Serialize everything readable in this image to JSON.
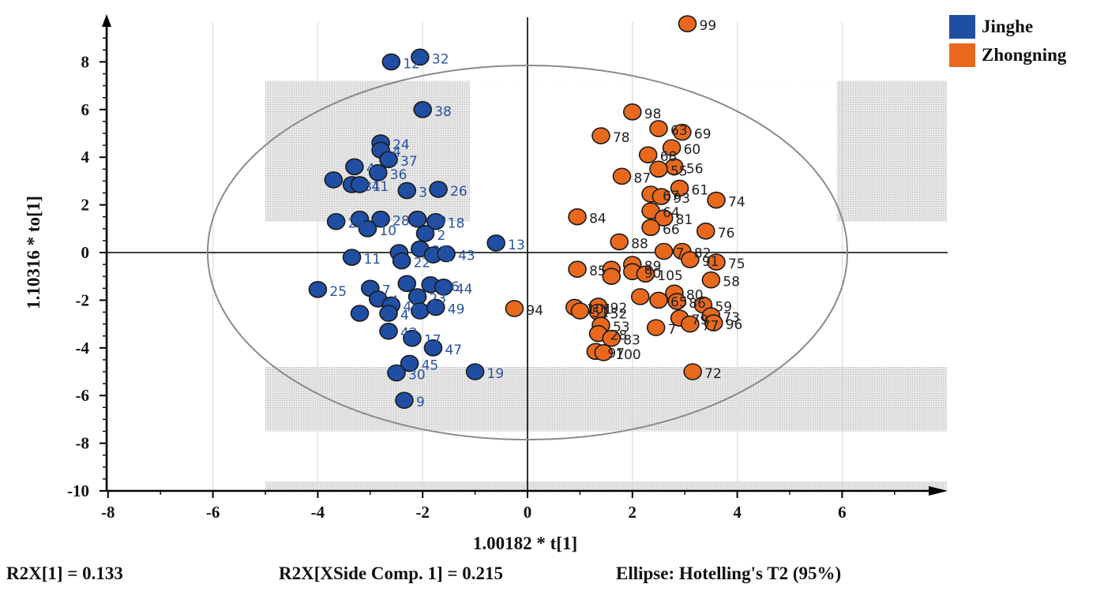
{
  "chart_data": {
    "type": "scatter",
    "xlabel": "1.00182 * t[1]",
    "ylabel": "1.10316 * to[1]",
    "xlim": [
      -8,
      8
    ],
    "ylim": [
      -10,
      10
    ],
    "x_ticks": [
      -8,
      -6,
      -4,
      -2,
      0,
      2,
      4,
      6
    ],
    "y_ticks": [
      -10,
      -8,
      -6,
      -4,
      -2,
      0,
      2,
      4,
      6,
      8
    ],
    "ellipse": {
      "center": [
        0,
        0
      ],
      "semi_axis_x": 6.1,
      "semi_axis_y": 7.85
    },
    "legend_position": "top-right",
    "series": [
      {
        "name": "Jinghe",
        "color": "#1f4ea3",
        "label_color": "#2a52a0",
        "points": [
          {
            "x": -2.6,
            "y": 8.0,
            "label": "12"
          },
          {
            "x": -2.05,
            "y": 8.2,
            "label": "32"
          },
          {
            "x": -2.0,
            "y": 6.0,
            "label": "38"
          },
          {
            "x": -2.8,
            "y": 4.6,
            "label": "24"
          },
          {
            "x": -2.8,
            "y": 4.3,
            "label": "4"
          },
          {
            "x": -2.65,
            "y": 3.9,
            "label": "37"
          },
          {
            "x": -3.3,
            "y": 3.6,
            "label": "4"
          },
          {
            "x": -2.85,
            "y": 3.35,
            "label": "36"
          },
          {
            "x": -3.7,
            "y": 3.05,
            "label": ""
          },
          {
            "x": -3.35,
            "y": 2.85,
            "label": "31"
          },
          {
            "x": -3.2,
            "y": 2.85,
            "label": "41"
          },
          {
            "x": -2.3,
            "y": 2.6,
            "label": "3"
          },
          {
            "x": -1.7,
            "y": 2.65,
            "label": "26"
          },
          {
            "x": -3.65,
            "y": 1.3,
            "label": "22"
          },
          {
            "x": -3.2,
            "y": 1.4,
            "label": ""
          },
          {
            "x": -2.8,
            "y": 1.4,
            "label": "28"
          },
          {
            "x": -3.05,
            "y": 1.0,
            "label": "10"
          },
          {
            "x": -2.1,
            "y": 1.4,
            "label": "30"
          },
          {
            "x": -1.75,
            "y": 1.3,
            "label": "18"
          },
          {
            "x": -1.95,
            "y": 0.8,
            "label": "2"
          },
          {
            "x": -0.6,
            "y": 0.4,
            "label": "13"
          },
          {
            "x": -2.45,
            "y": 0.0,
            "label": ""
          },
          {
            "x": -2.05,
            "y": 0.15,
            "label": "20"
          },
          {
            "x": -1.8,
            "y": -0.1,
            "label": "1"
          },
          {
            "x": -1.55,
            "y": -0.05,
            "label": "43"
          },
          {
            "x": -3.35,
            "y": -0.2,
            "label": "11"
          },
          {
            "x": -2.4,
            "y": -0.35,
            "label": "22"
          },
          {
            "x": -4.0,
            "y": -1.55,
            "label": "25"
          },
          {
            "x": -3.0,
            "y": -1.5,
            "label": "7"
          },
          {
            "x": -2.3,
            "y": -1.3,
            "label": ""
          },
          {
            "x": -1.85,
            "y": -1.35,
            "label": "16"
          },
          {
            "x": -1.6,
            "y": -1.45,
            "label": "44"
          },
          {
            "x": -2.85,
            "y": -1.95,
            "label": "4"
          },
          {
            "x": -2.1,
            "y": -1.85,
            "label": "23"
          },
          {
            "x": -2.6,
            "y": -2.2,
            "label": "46"
          },
          {
            "x": -3.2,
            "y": -2.55,
            "label": ""
          },
          {
            "x": -2.65,
            "y": -2.55,
            "label": "4"
          },
          {
            "x": -2.05,
            "y": -2.45,
            "label": ""
          },
          {
            "x": -1.75,
            "y": -2.3,
            "label": "49"
          },
          {
            "x": -2.65,
            "y": -3.3,
            "label": "42"
          },
          {
            "x": -2.2,
            "y": -3.6,
            "label": "17"
          },
          {
            "x": -1.8,
            "y": -4.0,
            "label": "47"
          },
          {
            "x": -2.25,
            "y": -4.65,
            "label": "45"
          },
          {
            "x": -2.5,
            "y": -5.05,
            "label": "30"
          },
          {
            "x": -1.0,
            "y": -5.0,
            "label": "19"
          },
          {
            "x": -2.35,
            "y": -6.2,
            "label": "9"
          }
        ]
      },
      {
        "name": "Zhongning",
        "color": "#e8691e",
        "label_color": "#222222",
        "points": [
          {
            "x": 3.05,
            "y": 9.6,
            "label": "99"
          },
          {
            "x": 2.0,
            "y": 5.9,
            "label": "98"
          },
          {
            "x": 1.4,
            "y": 4.9,
            "label": "78"
          },
          {
            "x": 2.5,
            "y": 5.2,
            "label": "63"
          },
          {
            "x": 2.95,
            "y": 5.05,
            "label": "69"
          },
          {
            "x": 2.75,
            "y": 4.4,
            "label": "60"
          },
          {
            "x": 2.3,
            "y": 4.1,
            "label": "68"
          },
          {
            "x": 2.8,
            "y": 3.6,
            "label": "56"
          },
          {
            "x": 2.5,
            "y": 3.5,
            "label": "55"
          },
          {
            "x": 1.8,
            "y": 3.2,
            "label": "87"
          },
          {
            "x": 2.9,
            "y": 2.7,
            "label": "61"
          },
          {
            "x": 2.35,
            "y": 2.45,
            "label": "67"
          },
          {
            "x": 2.55,
            "y": 2.35,
            "label": "93"
          },
          {
            "x": 3.6,
            "y": 2.2,
            "label": "74"
          },
          {
            "x": 0.95,
            "y": 1.5,
            "label": "84"
          },
          {
            "x": 2.35,
            "y": 1.75,
            "label": "64"
          },
          {
            "x": 2.6,
            "y": 1.45,
            "label": "81"
          },
          {
            "x": 2.35,
            "y": 1.05,
            "label": "66"
          },
          {
            "x": 3.4,
            "y": 0.9,
            "label": "76"
          },
          {
            "x": 1.75,
            "y": 0.45,
            "label": "88"
          },
          {
            "x": 2.6,
            "y": 0.05,
            "label": "7"
          },
          {
            "x": 2.95,
            "y": 0.05,
            "label": "82"
          },
          {
            "x": 3.1,
            "y": -0.3,
            "label": "91"
          },
          {
            "x": 3.6,
            "y": -0.4,
            "label": "75"
          },
          {
            "x": 0.95,
            "y": -0.7,
            "label": "85"
          },
          {
            "x": 1.6,
            "y": -0.7,
            "label": ""
          },
          {
            "x": 2.0,
            "y": -0.5,
            "label": "89"
          },
          {
            "x": 2.0,
            "y": -0.8,
            "label": "90"
          },
          {
            "x": 1.6,
            "y": -1.0,
            "label": ""
          },
          {
            "x": 2.25,
            "y": -0.9,
            "label": "105"
          },
          {
            "x": 3.5,
            "y": -1.15,
            "label": "58"
          },
          {
            "x": 2.15,
            "y": -1.85,
            "label": ""
          },
          {
            "x": 2.8,
            "y": -1.7,
            "label": "80"
          },
          {
            "x": 2.5,
            "y": -2.0,
            "label": "65"
          },
          {
            "x": 2.85,
            "y": -2.05,
            "label": "86"
          },
          {
            "x": 3.35,
            "y": -2.2,
            "label": "59"
          },
          {
            "x": 0.9,
            "y": -2.3,
            "label": "101"
          },
          {
            "x": 1.35,
            "y": -2.25,
            "label": "92"
          },
          {
            "x": 1.0,
            "y": -2.45,
            "label": "51"
          },
          {
            "x": 1.35,
            "y": -2.5,
            "label": "52"
          },
          {
            "x": 2.9,
            "y": -2.75,
            "label": "79"
          },
          {
            "x": 3.5,
            "y": -2.65,
            "label": "73"
          },
          {
            "x": 3.1,
            "y": -3.0,
            "label": "77"
          },
          {
            "x": 3.55,
            "y": -2.95,
            "label": "96"
          },
          {
            "x": 1.4,
            "y": -3.05,
            "label": "53"
          },
          {
            "x": 2.45,
            "y": -3.15,
            "label": "7"
          },
          {
            "x": 1.35,
            "y": -3.4,
            "label": "28"
          },
          {
            "x": 1.6,
            "y": -3.6,
            "label": "83"
          },
          {
            "x": 1.3,
            "y": -4.15,
            "label": "97"
          },
          {
            "x": 1.45,
            "y": -4.2,
            "label": "100"
          },
          {
            "x": 3.15,
            "y": -5.0,
            "label": "72"
          },
          {
            "x": -0.25,
            "y": -2.35,
            "label": "94"
          }
        ]
      }
    ],
    "footer": {
      "r2x": "R2X[1] = 0.133",
      "r2x_side": "R2X[XSide Comp. 1] = 0.215",
      "ellipse": "Ellipse: Hotelling's T2 (95%)"
    }
  }
}
